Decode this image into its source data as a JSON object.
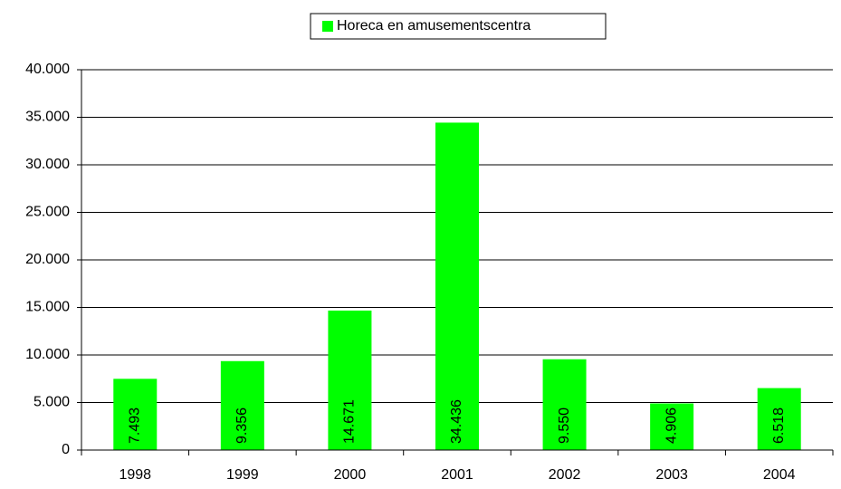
{
  "chart_data": {
    "type": "bar",
    "categories": [
      "1998",
      "1999",
      "2000",
      "2001",
      "2002",
      "2003",
      "2004"
    ],
    "series": [
      {
        "name": "Horeca en amusementscentra",
        "color": "#00ff00",
        "values": [
          7493,
          9356,
          14671,
          34436,
          9550,
          4906,
          6518
        ],
        "value_labels": [
          "7.493",
          "9.356",
          "14.671",
          "34.436",
          "9.550",
          "4.906",
          "6.518"
        ]
      }
    ],
    "ylim": [
      0,
      40000
    ],
    "yticks": [
      0,
      {
        "value": 5000,
        "label": "5.000"
      },
      {
        "value": 10000,
        "label": "10.000"
      },
      {
        "value": 15000,
        "label": "15.000"
      },
      {
        "value": 20000,
        "label": "20.000"
      },
      {
        "value": 25000,
        "label": "25.000"
      },
      {
        "value": 30000,
        "label": "30.000"
      },
      {
        "value": 35000,
        "label": "35.000"
      },
      {
        "value": 40000,
        "label": "40.000"
      }
    ],
    "grid": true,
    "legend": "top"
  }
}
